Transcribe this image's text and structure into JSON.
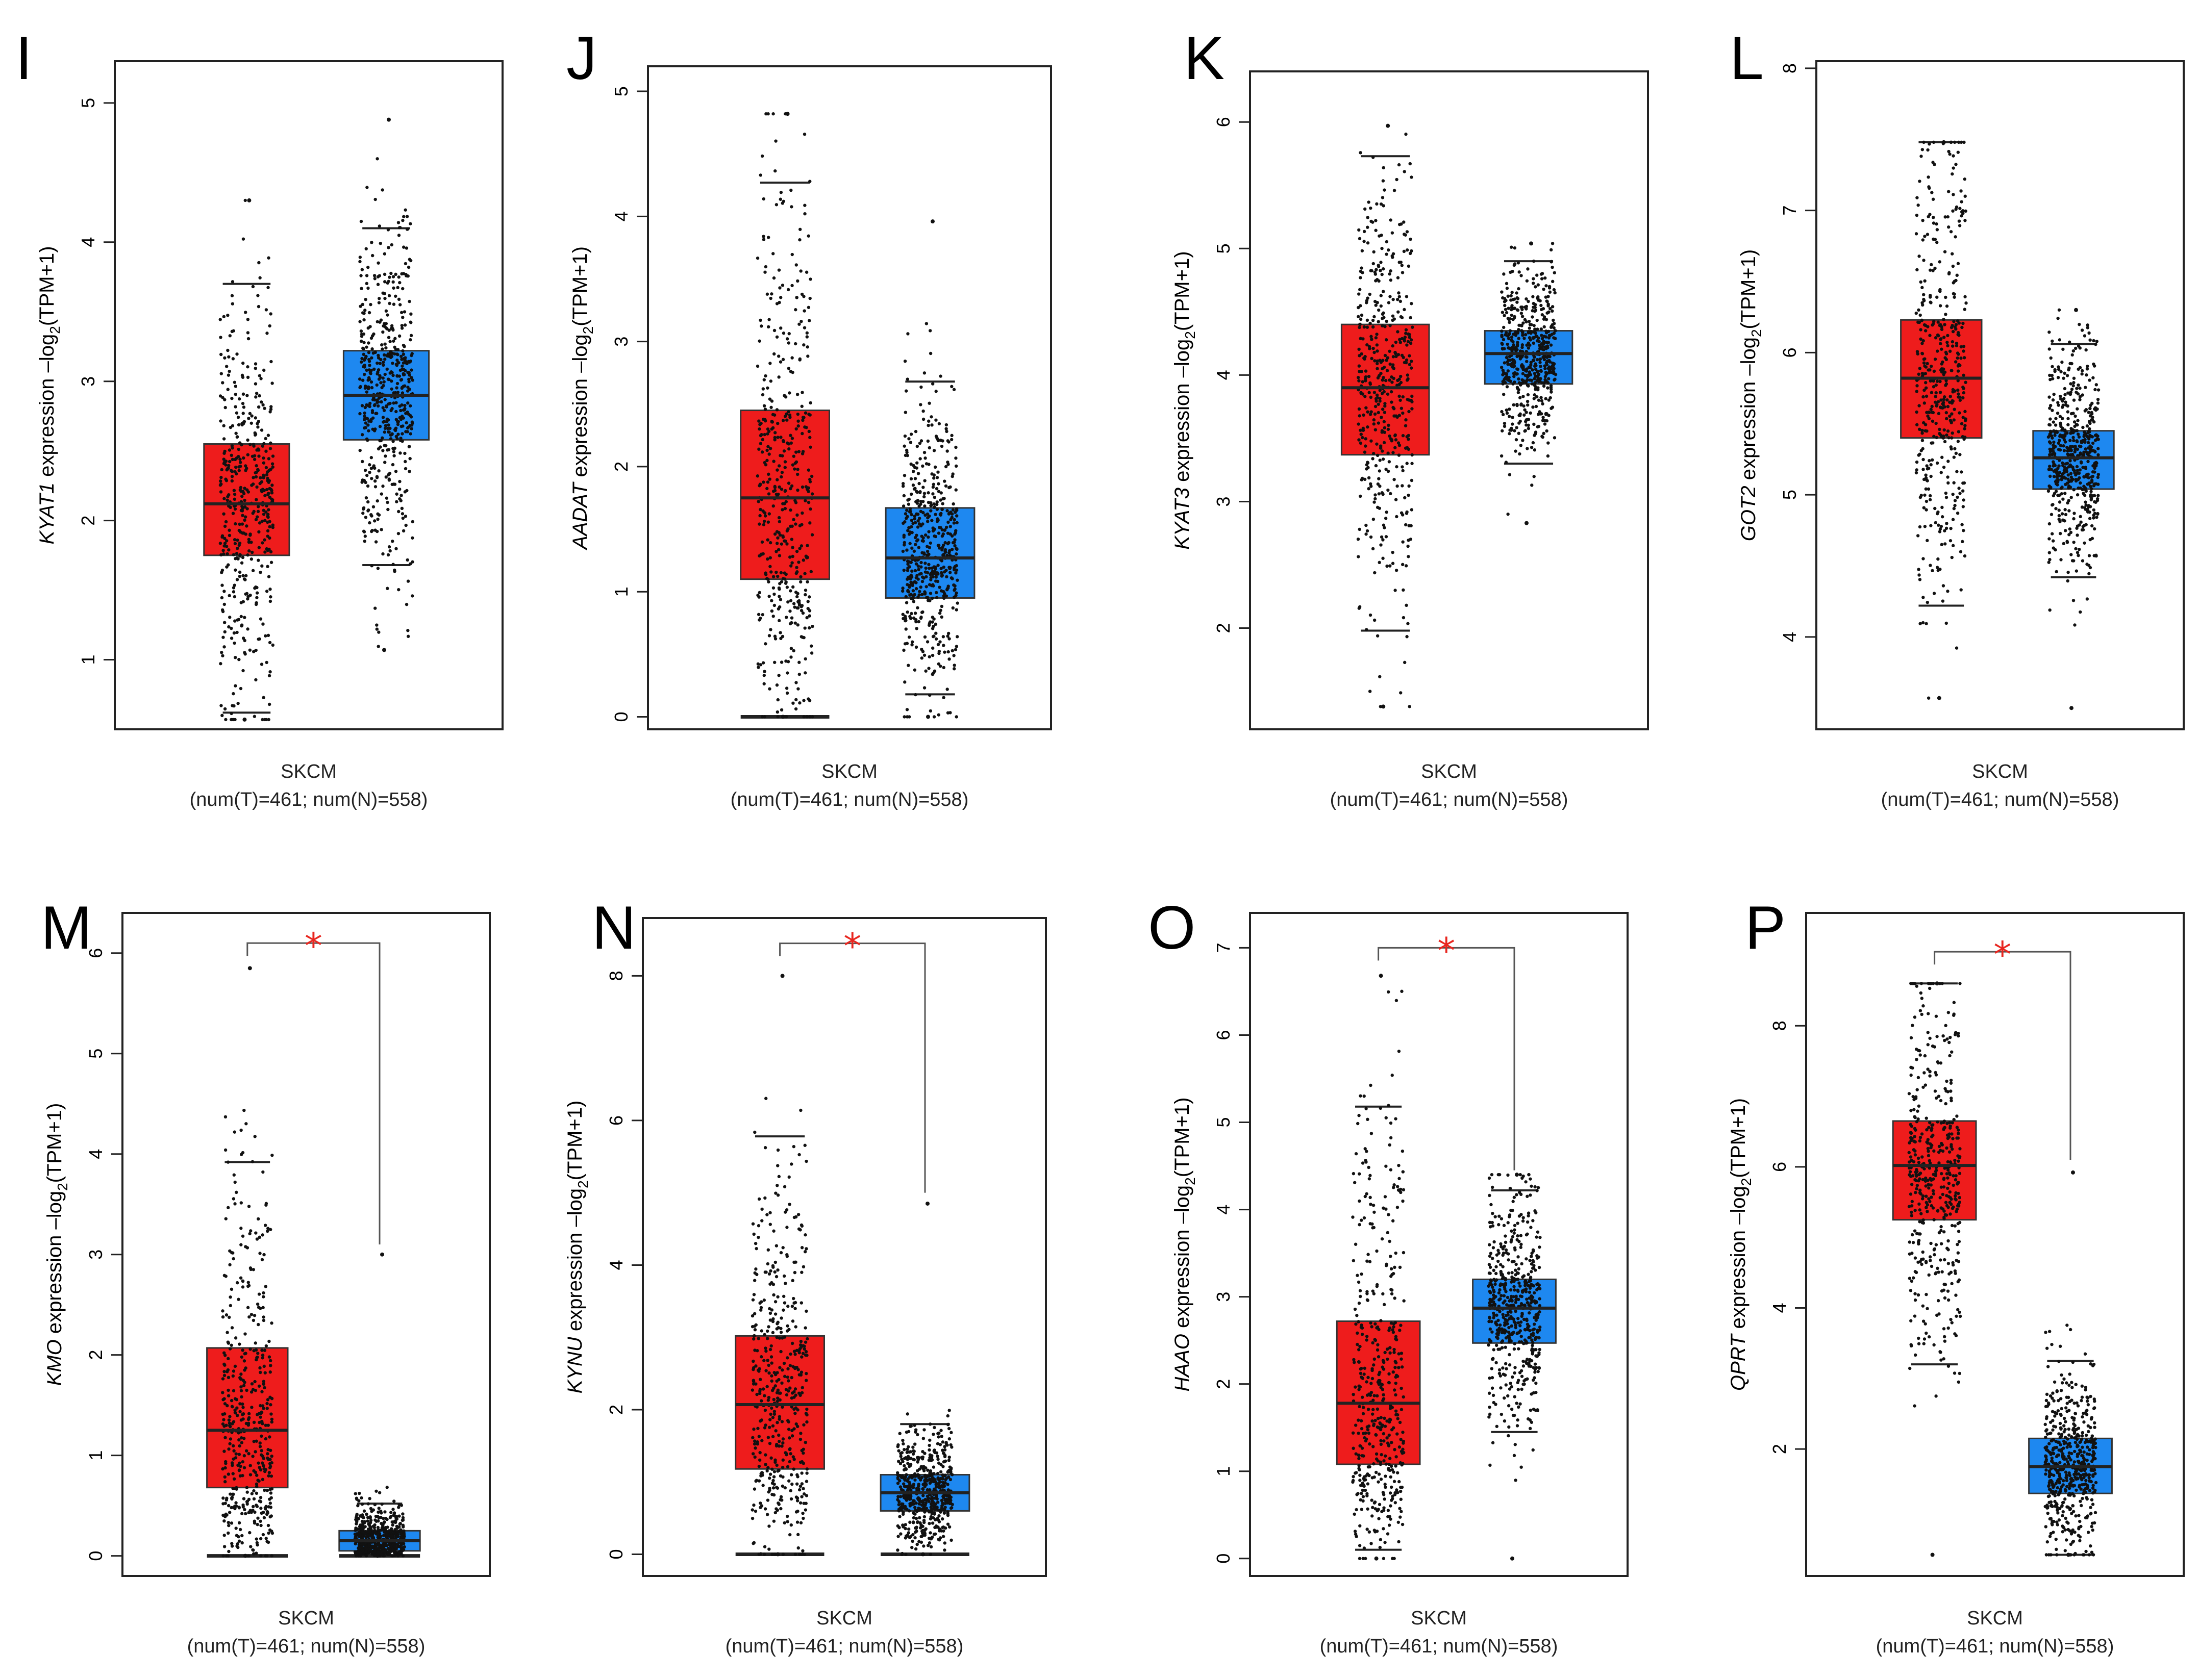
{
  "figure": {
    "tumor_color": "#ee1c1c",
    "normal_color": "#1e88f0",
    "star_color": "#e8261f"
  },
  "chart_data": [
    {
      "type": "box",
      "panel": "I",
      "gene": "KYAT1",
      "ylabel_suffix": " expression –log",
      "ylabel_sub": "2",
      "ylabel_tail": "(TPM+1)",
      "xlabel": "SKCM",
      "xlabel2": "(num(T)=461; num(N)=558)",
      "ylim": [
        0.5,
        5.3
      ],
      "yticks": [
        1,
        2,
        3,
        4,
        5
      ],
      "significant": false,
      "series": [
        {
          "name": "T",
          "q1": 1.75,
          "median": 2.12,
          "q3": 2.55,
          "whisker_low": 0.62,
          "whisker_high": 3.7,
          "min": 0.57,
          "max": 4.3
        },
        {
          "name": "N",
          "q1": 2.58,
          "median": 2.9,
          "q3": 3.22,
          "whisker_low": 1.68,
          "whisker_high": 4.1,
          "min": 1.07,
          "max": 4.88
        }
      ]
    },
    {
      "type": "box",
      "panel": "J",
      "gene": "AADAT",
      "ylabel_suffix": " expression –log",
      "ylabel_sub": "2",
      "ylabel_tail": "(TPM+1)",
      "xlabel": "SKCM",
      "xlabel2": "(num(T)=461; num(N)=558)",
      "ylim": [
        -0.1,
        5.2
      ],
      "yticks": [
        0,
        1,
        2,
        3,
        4,
        5
      ],
      "significant": false,
      "series": [
        {
          "name": "T",
          "q1": 1.1,
          "median": 1.75,
          "q3": 2.45,
          "whisker_low": 0.0,
          "whisker_high": 4.27,
          "min": 0.0,
          "max": 4.82
        },
        {
          "name": "N",
          "q1": 0.95,
          "median": 1.27,
          "q3": 1.67,
          "whisker_low": 0.18,
          "whisker_high": 2.68,
          "min": 0.0,
          "max": 3.96
        }
      ]
    },
    {
      "type": "box",
      "panel": "K",
      "gene": "KYAT3",
      "ylabel_suffix": " expression –log",
      "ylabel_sub": "2",
      "ylabel_tail": "(TPM+1)",
      "xlabel": "SKCM",
      "xlabel2": "(num(T)=461; num(N)=558)",
      "ylim": [
        1.2,
        6.4
      ],
      "yticks": [
        2,
        3,
        4,
        5,
        6
      ],
      "significant": false,
      "series": [
        {
          "name": "T",
          "q1": 3.37,
          "median": 3.9,
          "q3": 4.4,
          "whisker_low": 1.98,
          "whisker_high": 5.73,
          "min": 1.38,
          "max": 5.97
        },
        {
          "name": "N",
          "q1": 3.93,
          "median": 4.17,
          "q3": 4.35,
          "whisker_low": 3.3,
          "whisker_high": 4.9,
          "min": 2.83,
          "max": 5.04
        }
      ]
    },
    {
      "type": "box",
      "panel": "L",
      "gene": "GOT2",
      "ylabel_suffix": " expression –log",
      "ylabel_sub": "2",
      "ylabel_tail": "(TPM+1)",
      "xlabel": "SKCM",
      "xlabel2": "(num(T)=461; num(N)=558)",
      "ylim": [
        3.35,
        8.05
      ],
      "yticks": [
        4,
        5,
        6,
        7,
        8
      ],
      "significant": false,
      "series": [
        {
          "name": "T",
          "q1": 5.4,
          "median": 5.82,
          "q3": 6.23,
          "whisker_low": 4.22,
          "whisker_high": 7.48,
          "min": 3.57,
          "max": 7.48
        },
        {
          "name": "N",
          "q1": 5.04,
          "median": 5.26,
          "q3": 5.45,
          "whisker_low": 4.42,
          "whisker_high": 6.06,
          "min": 3.5,
          "max": 6.3
        }
      ]
    },
    {
      "type": "box",
      "panel": "M",
      "gene": "KMO",
      "ylabel_suffix": " expression –log",
      "ylabel_sub": "2",
      "ylabel_tail": "(TPM+1)",
      "xlabel": "SKCM",
      "xlabel2": "(num(T)=461; num(N)=558)",
      "ylim": [
        -0.2,
        6.4
      ],
      "yticks": [
        0,
        1,
        2,
        3,
        4,
        5,
        6
      ],
      "significant": true,
      "star": "*",
      "sig_line_top": 6.1,
      "sig_line_right_low": 3.1,
      "series": [
        {
          "name": "T",
          "q1": 0.68,
          "median": 1.25,
          "q3": 2.07,
          "whisker_low": 0.0,
          "whisker_high": 3.92,
          "min": 0.0,
          "max": 5.85
        },
        {
          "name": "N",
          "q1": 0.05,
          "median": 0.15,
          "q3": 0.25,
          "whisker_low": 0.0,
          "whisker_high": 0.52,
          "min": 0.0,
          "max": 3.0
        }
      ]
    },
    {
      "type": "box",
      "panel": "N",
      "gene": "KYNU",
      "ylabel_suffix": " expression –log",
      "ylabel_sub": "2",
      "ylabel_tail": "(TPM+1)",
      "xlabel": "SKCM",
      "xlabel2": "(num(T)=461; num(N)=558)",
      "ylim": [
        -0.3,
        8.8
      ],
      "yticks": [
        0,
        2,
        4,
        6,
        8
      ],
      "significant": true,
      "star": "*",
      "sig_line_top": 8.45,
      "sig_line_right_low": 5.0,
      "series": [
        {
          "name": "T",
          "q1": 1.18,
          "median": 2.07,
          "q3": 3.02,
          "whisker_low": 0.0,
          "whisker_high": 5.78,
          "min": 0.0,
          "max": 8.0
        },
        {
          "name": "N",
          "q1": 0.6,
          "median": 0.85,
          "q3": 1.1,
          "whisker_low": 0.0,
          "whisker_high": 1.8,
          "min": 0.0,
          "max": 4.85
        }
      ]
    },
    {
      "type": "box",
      "panel": "O",
      "gene": "HAAO",
      "ylabel_suffix": " expression –log",
      "ylabel_sub": "2",
      "ylabel_tail": "(TPM+1)",
      "xlabel": "SKCM",
      "xlabel2": "(num(T)=461; num(N)=558)",
      "ylim": [
        -0.2,
        7.4
      ],
      "yticks": [
        0,
        1,
        2,
        3,
        4,
        5,
        6,
        7
      ],
      "significant": true,
      "star": "*",
      "sig_line_top": 7.0,
      "sig_line_right_low": 4.45,
      "series": [
        {
          "name": "T",
          "q1": 1.08,
          "median": 1.78,
          "q3": 2.72,
          "whisker_low": 0.1,
          "whisker_high": 5.18,
          "min": 0.0,
          "max": 6.68
        },
        {
          "name": "N",
          "q1": 2.47,
          "median": 2.87,
          "q3": 3.2,
          "whisker_low": 1.45,
          "whisker_high": 4.22,
          "min": 0.0,
          "max": 4.4
        }
      ]
    },
    {
      "type": "box",
      "panel": "P",
      "gene": "QPRT",
      "ylabel_suffix": " expression –log",
      "ylabel_sub": "2",
      "ylabel_tail": "(TPM+1)",
      "xlabel": "SKCM",
      "xlabel2": "(num(T)=461; num(N)=558)",
      "ylim": [
        0.2,
        9.6
      ],
      "yticks": [
        2,
        4,
        6,
        8
      ],
      "significant": true,
      "star": "*",
      "sig_line_top": 9.05,
      "sig_line_right_low": 6.1,
      "series": [
        {
          "name": "T",
          "q1": 5.25,
          "median": 6.02,
          "q3": 6.65,
          "whisker_low": 3.2,
          "whisker_high": 8.6,
          "min": 0.5,
          "max": 8.6
        },
        {
          "name": "N",
          "q1": 1.37,
          "median": 1.75,
          "q3": 2.15,
          "whisker_low": 0.5,
          "whisker_high": 3.25,
          "min": 0.5,
          "max": 5.92
        }
      ]
    }
  ]
}
